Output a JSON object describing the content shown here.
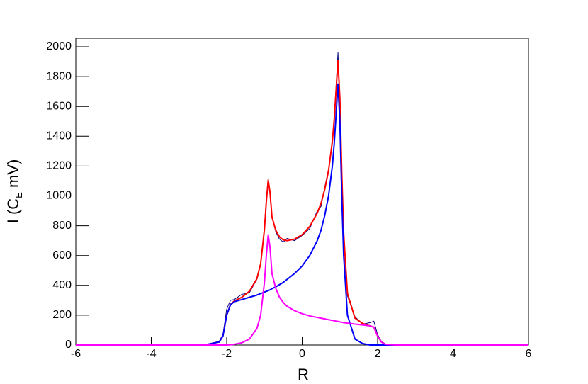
{
  "chart_data": {
    "type": "line",
    "xlabel": "R",
    "ylabel": "I (C",
    "ylabel_sub": "E",
    "ylabel_end": " mV)",
    "x": [
      -6,
      -5,
      -4,
      -3,
      -2.5,
      -2.2,
      -2.1,
      -2.0,
      -1.9,
      -1.8,
      -1.6,
      -1.4,
      -1.2,
      -1.1,
      -1.0,
      -0.95,
      -0.9,
      -0.85,
      -0.8,
      -0.7,
      -0.6,
      -0.5,
      -0.4,
      -0.2,
      0,
      0.2,
      0.4,
      0.5,
      0.6,
      0.7,
      0.8,
      0.85,
      0.9,
      0.95,
      1.0,
      1.05,
      1.1,
      1.2,
      1.4,
      1.6,
      1.8,
      1.9,
      2.0,
      2.1,
      2.2,
      2.5,
      3,
      4,
      5,
      6
    ],
    "series": [
      {
        "color": "#000080",
        "values": [
          2,
          0,
          3,
          1,
          6,
          25,
          70,
          240,
          300,
          305,
          340,
          350,
          440,
          540,
          790,
          980,
          1120,
          1000,
          860,
          760,
          710,
          690,
          715,
          700,
          735,
          780,
          900,
          930,
          1060,
          1180,
          1350,
          1530,
          1740,
          1960,
          1620,
          1170,
          760,
          330,
          190,
          140,
          150,
          160,
          70,
          25,
          8,
          2,
          0,
          1,
          0,
          2
        ]
      },
      {
        "color": "#ff0000",
        "values": [
          0,
          0,
          0,
          0,
          5,
          20,
          60,
          200,
          272,
          295,
          320,
          360,
          445,
          545,
          775,
          960,
          1105,
          1020,
          858,
          770,
          725,
          705,
          700,
          710,
          740,
          795,
          885,
          950,
          1045,
          1170,
          1365,
          1513,
          1710,
          1908,
          1655,
          1153,
          750,
          347,
          180,
          145,
          128,
          120,
          60,
          20,
          5,
          0,
          0,
          0,
          0,
          0
        ]
      },
      {
        "color": "#0000ff",
        "values": [
          0,
          0,
          0,
          0,
          5,
          20,
          60,
          200,
          270,
          290,
          305,
          320,
          335,
          345,
          355,
          360,
          365,
          370,
          378,
          390,
          405,
          420,
          440,
          480,
          530,
          600,
          700,
          770,
          870,
          1000,
          1200,
          1350,
          1550,
          1750,
          1500,
          1000,
          600,
          200,
          40,
          10,
          0,
          0,
          0,
          0,
          0,
          0,
          0,
          0,
          0,
          0
        ]
      },
      {
        "color": "#ff00ff",
        "values": [
          0,
          0,
          0,
          0,
          0,
          0,
          0,
          0,
          2,
          5,
          15,
          40,
          110,
          200,
          420,
          600,
          740,
          650,
          480,
          380,
          320,
          285,
          260,
          230,
          210,
          195,
          185,
          180,
          175,
          170,
          165,
          163,
          160,
          158,
          155,
          153,
          150,
          147,
          140,
          135,
          128,
          120,
          60,
          20,
          5,
          0,
          0,
          0,
          0,
          0
        ]
      }
    ],
    "xlim": [
      -6,
      6
    ],
    "xticks": [
      -6,
      -4,
      -2,
      0,
      2,
      4,
      6
    ],
    "ylim": [
      0,
      2000
    ],
    "yticks": [
      0,
      200,
      400,
      600,
      800,
      1000,
      1200,
      1400,
      1600,
      1800,
      2000
    ]
  }
}
